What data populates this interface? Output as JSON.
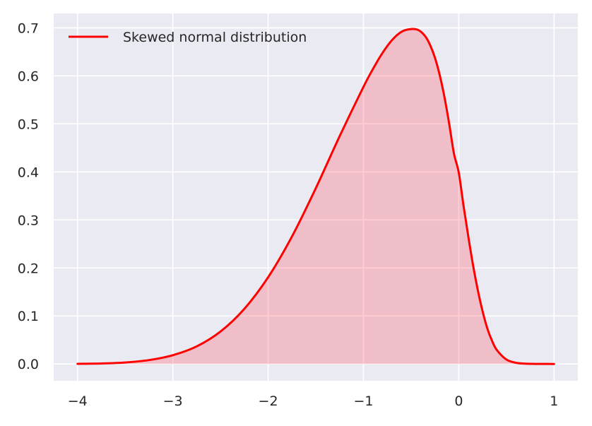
{
  "chart_data": {
    "type": "area",
    "title": "",
    "xlabel": "",
    "ylabel": "",
    "xlim": [
      -4.25,
      1.25
    ],
    "ylim": [
      -0.035,
      0.73
    ],
    "xticks": [
      -4,
      -3,
      -2,
      -1,
      0,
      1
    ],
    "xtick_labels": [
      "−4",
      "−3",
      "−2",
      "−1",
      "0",
      "1"
    ],
    "yticks": [
      0.0,
      0.1,
      0.2,
      0.3,
      0.4,
      0.5,
      0.6,
      0.7
    ],
    "ytick_labels": [
      "0.0",
      "0.1",
      "0.2",
      "0.3",
      "0.4",
      "0.5",
      "0.6",
      "0.7"
    ],
    "grid": true,
    "legend_position": "top-left",
    "series": [
      {
        "name": "Skewed normal distribution",
        "color": "#ff0000",
        "fill_color": "#ff5a6a",
        "fill_opacity": 0.3,
        "x": [
          -4.0,
          -3.75,
          -3.5,
          -3.25,
          -3.0,
          -2.75,
          -2.5,
          -2.25,
          -2.0,
          -1.75,
          -1.5,
          -1.25,
          -1.0,
          -0.9,
          -0.8,
          -0.7,
          -0.6,
          -0.5,
          -0.42,
          -0.35,
          -0.3,
          -0.25,
          -0.2,
          -0.15,
          -0.1,
          -0.05,
          0.0,
          0.05,
          0.1,
          0.15,
          0.2,
          0.25,
          0.3,
          0.35,
          0.4,
          0.5,
          0.6,
          0.7,
          0.8,
          0.9,
          1.0
        ],
        "y": [
          0.0003,
          0.0011,
          0.0031,
          0.0081,
          0.0183,
          0.0366,
          0.0675,
          0.1147,
          0.1806,
          0.2654,
          0.3659,
          0.4742,
          0.5769,
          0.6143,
          0.6477,
          0.6745,
          0.6919,
          0.6974,
          0.695,
          0.682,
          0.664,
          0.638,
          0.602,
          0.556,
          0.5,
          0.438,
          0.399,
          0.33,
          0.266,
          0.206,
          0.154,
          0.11,
          0.074,
          0.048,
          0.029,
          0.0093,
          0.0025,
          0.0006,
          0.0002,
          0.0001,
          0.0
        ]
      }
    ]
  }
}
